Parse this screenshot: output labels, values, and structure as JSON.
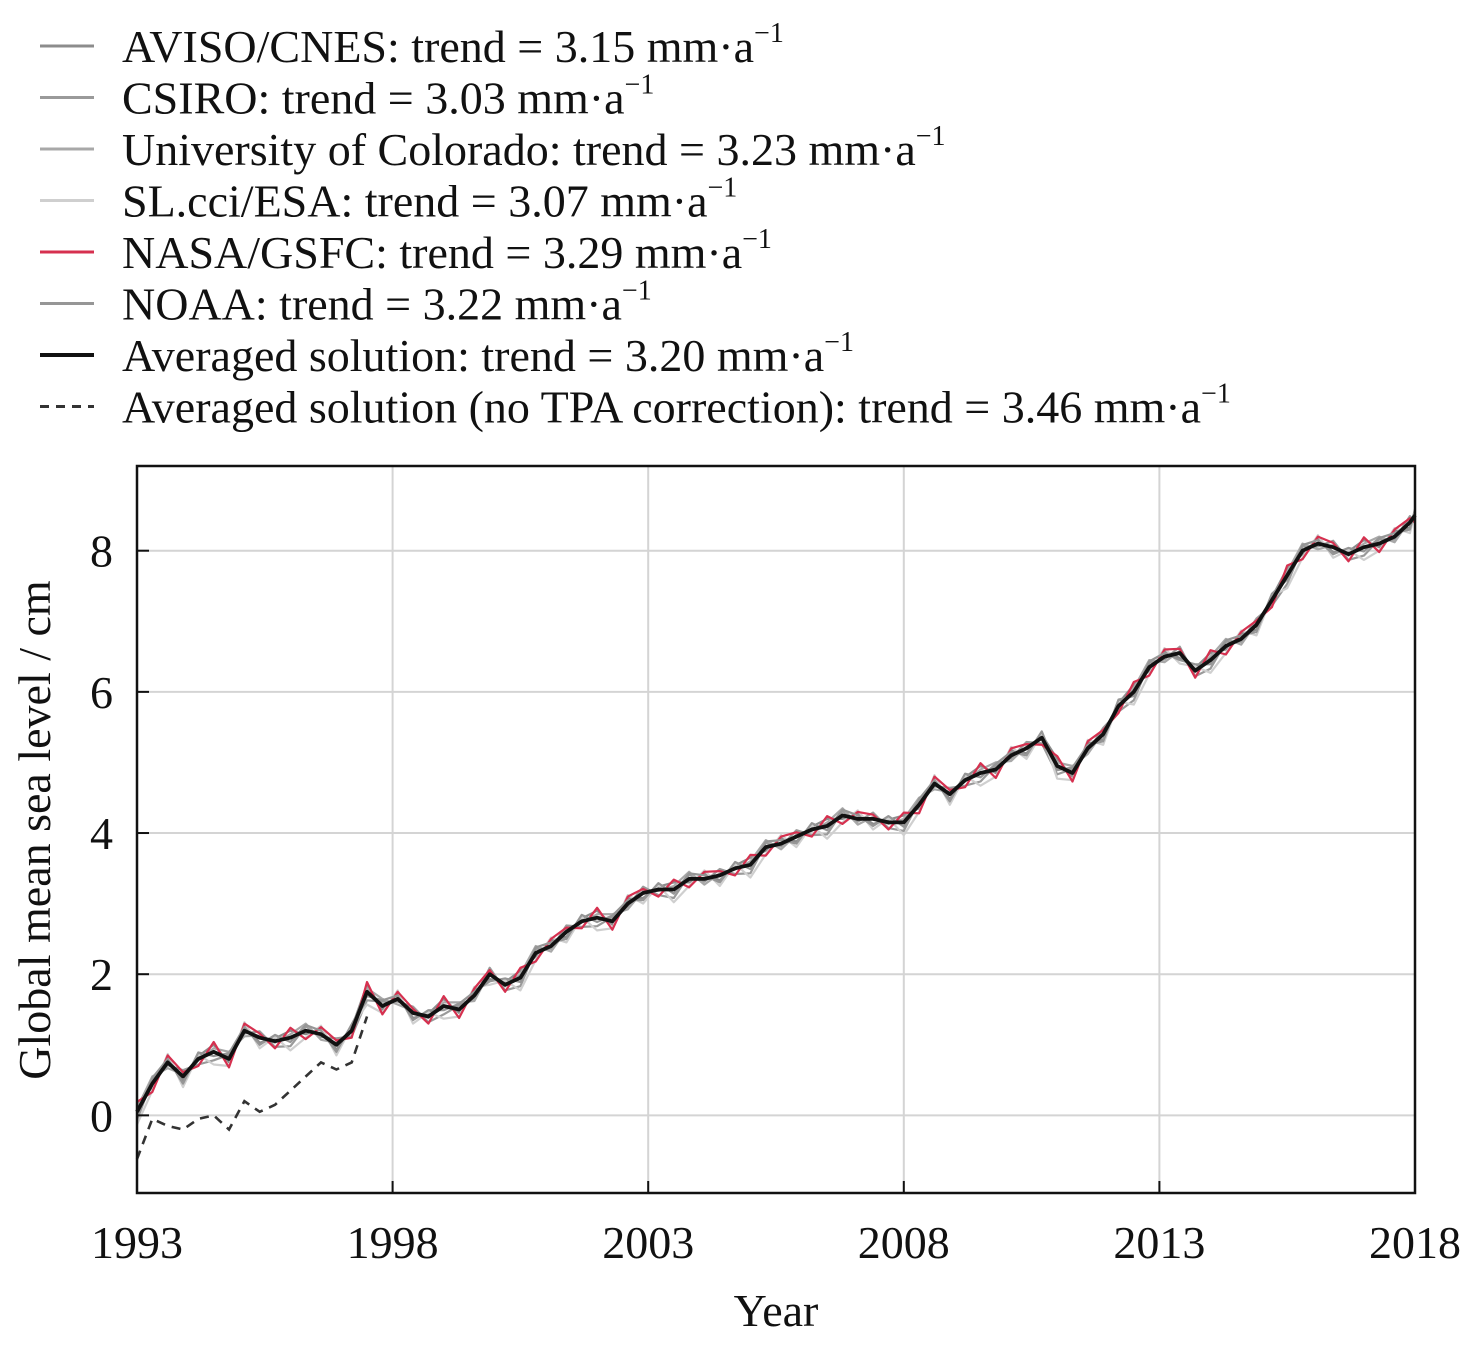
{
  "chart_data": {
    "type": "line",
    "xlabel": "Year",
    "ylabel": "Global mean sea level / cm",
    "xlim": [
      1993,
      2018
    ],
    "ylim": [
      -1.1,
      9.2
    ],
    "xticks": [
      "1993",
      "1998",
      "2003",
      "2008",
      "2013",
      "2018"
    ],
    "yticks": [
      "0",
      "2",
      "4",
      "6",
      "8"
    ],
    "grid": true,
    "legend_position": "above-plot",
    "legend": [
      {
        "label": "AVISO/CNES: trend = 3.15 mm·a",
        "superscript": "−1",
        "color": "#8c8c8c",
        "style": "solid"
      },
      {
        "label": "CSIRO: trend = 3.03 mm·a",
        "superscript": "−1",
        "color": "#9a9a9a",
        "style": "solid"
      },
      {
        "label": "University of Colorado: trend = 3.23 mm·a",
        "superscript": "−1",
        "color": "#a8a8a8",
        "style": "solid"
      },
      {
        "label": "SL.cci/ESA: trend = 3.07 mm·a",
        "superscript": "−1",
        "color": "#cfcfcf",
        "style": "solid"
      },
      {
        "label": "NASA/GSFC: trend = 3.29 mm·a",
        "superscript": "−1",
        "color": "#d6304f",
        "style": "solid"
      },
      {
        "label": "NOAA: trend = 3.22 mm·a",
        "superscript": "−1",
        "color": "#969696",
        "style": "solid"
      },
      {
        "label": "Averaged solution: trend = 3.20 mm·a",
        "superscript": "−1",
        "color": "#111111",
        "style": "solid"
      },
      {
        "label": "Averaged solution (no TPA correction): trend = 3.46 mm·a",
        "superscript": "−1",
        "color": "#333333",
        "style": "dashed"
      }
    ],
    "averaged_x": [
      1993.0,
      1993.3,
      1993.6,
      1993.9,
      1994.2,
      1994.5,
      1994.8,
      1995.1,
      1995.4,
      1995.7,
      1996.0,
      1996.3,
      1996.6,
      1996.9,
      1997.2,
      1997.5,
      1997.8,
      1998.1,
      1998.4,
      1998.7,
      1999.0,
      1999.3,
      1999.6,
      1999.9,
      2000.2,
      2000.5,
      2000.8,
      2001.1,
      2001.4,
      2001.7,
      2002.0,
      2002.3,
      2002.6,
      2002.9,
      2003.2,
      2003.5,
      2003.8,
      2004.1,
      2004.4,
      2004.7,
      2005.0,
      2005.3,
      2005.6,
      2005.9,
      2006.2,
      2006.5,
      2006.8,
      2007.1,
      2007.4,
      2007.7,
      2008.0,
      2008.3,
      2008.6,
      2008.9,
      2009.2,
      2009.5,
      2009.8,
      2010.1,
      2010.4,
      2010.7,
      2011.0,
      2011.3,
      2011.6,
      2011.9,
      2012.2,
      2012.5,
      2012.8,
      2013.1,
      2013.4,
      2013.7,
      2014.0,
      2014.3,
      2014.6,
      2014.9,
      2015.2,
      2015.5,
      2015.8,
      2016.1,
      2016.4,
      2016.7,
      2017.0,
      2017.3,
      2017.6,
      2017.9,
      2018.0
    ],
    "averaged_y": [
      0.05,
      0.45,
      0.75,
      0.55,
      0.8,
      0.9,
      0.8,
      1.2,
      1.1,
      1.05,
      1.1,
      1.2,
      1.15,
      1.0,
      1.2,
      1.75,
      1.55,
      1.65,
      1.45,
      1.4,
      1.55,
      1.5,
      1.7,
      2.0,
      1.85,
      1.95,
      2.3,
      2.4,
      2.6,
      2.75,
      2.8,
      2.75,
      3.0,
      3.15,
      3.2,
      3.2,
      3.35,
      3.35,
      3.4,
      3.5,
      3.55,
      3.8,
      3.85,
      3.95,
      4.05,
      4.1,
      4.25,
      4.2,
      4.2,
      4.15,
      4.15,
      4.4,
      4.7,
      4.55,
      4.75,
      4.85,
      4.9,
      5.1,
      5.2,
      5.35,
      4.95,
      4.85,
      5.2,
      5.4,
      5.8,
      6.0,
      6.35,
      6.5,
      6.55,
      6.3,
      6.45,
      6.65,
      6.75,
      6.95,
      7.3,
      7.65,
      8.0,
      8.1,
      8.05,
      7.95,
      8.05,
      8.1,
      8.2,
      8.4,
      8.5
    ],
    "no_tpa_x": [
      1993.0,
      1993.3,
      1993.6,
      1993.9,
      1994.2,
      1994.5,
      1994.8,
      1995.1,
      1995.4,
      1995.7,
      1996.0,
      1996.3,
      1996.6,
      1996.9,
      1997.2,
      1997.5
    ],
    "no_tpa_y": [
      -0.62,
      -0.05,
      -0.15,
      -0.2,
      -0.05,
      0.0,
      -0.2,
      0.2,
      0.05,
      0.15,
      0.35,
      0.55,
      0.75,
      0.65,
      0.75,
      1.4
    ]
  }
}
